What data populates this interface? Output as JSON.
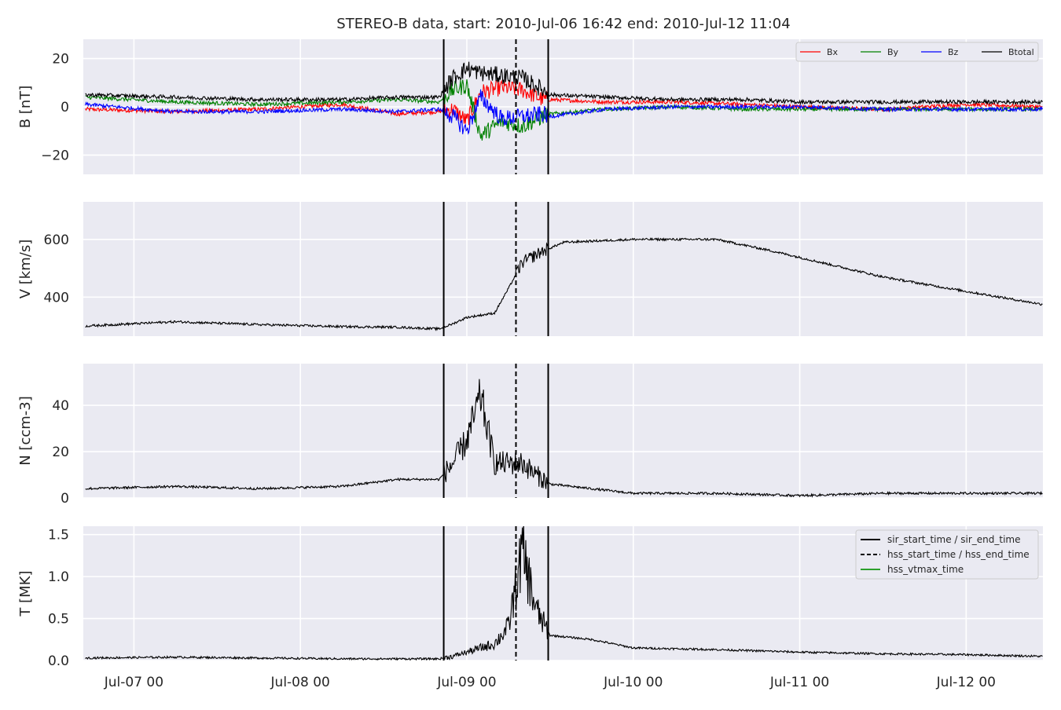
{
  "title": "STEREO-B data, start: 2010-Jul-06 16:42  end: 2010-Jul-12 11:04",
  "x_tick_labels": [
    "Jul-07 00",
    "Jul-08 00",
    "Jul-09 00",
    "Jul-10 00",
    "Jul-11 00",
    "Jul-12 00"
  ],
  "colors": {
    "plot_bg": "#eaeaf2",
    "grid": "#ffffff",
    "Bx": "#ff0000",
    "By": "#008000",
    "Bz": "#0000ff",
    "Btotal": "#000000",
    "line": "#000000",
    "hss_vtmax": "#2ca02c"
  },
  "chart_data": [
    {
      "type": "line",
      "id": "B",
      "ylabel": "B [nT]",
      "ylim": [
        -28,
        28
      ],
      "yticks": [
        -20,
        0,
        20
      ],
      "ytick_labels": [
        "−20",
        "0",
        "20"
      ],
      "x_range": [
        "2010-07-06 16:42",
        "2010-07-12 11:04"
      ],
      "legend": {
        "placement": "top-right",
        "entries": [
          "Bx",
          "By",
          "Bz",
          "Btotal"
        ]
      },
      "grid": true,
      "series": [
        {
          "name": "Bx",
          "points": [
            [
              "2010-07-06 17:00",
              -1
            ],
            [
              "2010-07-07 06:00",
              -2
            ],
            [
              "2010-07-07 18:00",
              -1
            ],
            [
              "2010-07-08 06:00",
              1
            ],
            [
              "2010-07-08 14:00",
              -3
            ],
            [
              "2010-07-08 20:00",
              -2
            ],
            [
              "2010-07-08 22:00",
              -1
            ],
            [
              "2010-07-09 00:00",
              -6
            ],
            [
              "2010-07-09 02:00",
              6
            ],
            [
              "2010-07-09 05:00",
              8
            ],
            [
              "2010-07-09 08:00",
              7
            ],
            [
              "2010-07-09 11:00",
              3
            ],
            [
              "2010-07-09 12:00",
              3
            ],
            [
              "2010-07-09 20:00",
              2
            ],
            [
              "2010-07-10 06:00",
              2
            ],
            [
              "2010-07-10 16:00",
              1
            ],
            [
              "2010-07-11 00:00",
              0
            ],
            [
              "2010-07-11 12:00",
              -1
            ],
            [
              "2010-07-12 00:00",
              1
            ],
            [
              "2010-07-12 11:00",
              0
            ]
          ]
        },
        {
          "name": "By",
          "points": [
            [
              "2010-07-06 17:00",
              4
            ],
            [
              "2010-07-07 06:00",
              2
            ],
            [
              "2010-07-07 18:00",
              1
            ],
            [
              "2010-07-08 06:00",
              2
            ],
            [
              "2010-07-08 14:00",
              3
            ],
            [
              "2010-07-08 20:00",
              2
            ],
            [
              "2010-07-08 22:00",
              7
            ],
            [
              "2010-07-09 00:00",
              9
            ],
            [
              "2010-07-09 02:00",
              -12
            ],
            [
              "2010-07-09 05:00",
              -6
            ],
            [
              "2010-07-09 08:00",
              -8
            ],
            [
              "2010-07-09 11:00",
              -4
            ],
            [
              "2010-07-09 12:00",
              -3
            ],
            [
              "2010-07-09 20:00",
              -1
            ],
            [
              "2010-07-10 06:00",
              0
            ],
            [
              "2010-07-10 16:00",
              -1
            ],
            [
              "2010-07-11 00:00",
              -1
            ],
            [
              "2010-07-11 12:00",
              -1
            ],
            [
              "2010-07-12 00:00",
              -1
            ],
            [
              "2010-07-12 11:00",
              -1
            ]
          ]
        },
        {
          "name": "Bz",
          "points": [
            [
              "2010-07-06 17:00",
              1
            ],
            [
              "2010-07-07 06:00",
              -2
            ],
            [
              "2010-07-07 18:00",
              -2
            ],
            [
              "2010-07-08 06:00",
              -1
            ],
            [
              "2010-07-08 14:00",
              -2
            ],
            [
              "2010-07-08 20:00",
              -1
            ],
            [
              "2010-07-08 22:00",
              -4
            ],
            [
              "2010-07-09 00:00",
              -10
            ],
            [
              "2010-07-09 02:00",
              4
            ],
            [
              "2010-07-09 05:00",
              -5
            ],
            [
              "2010-07-09 08:00",
              -4
            ],
            [
              "2010-07-09 11:00",
              -3
            ],
            [
              "2010-07-09 12:00",
              -4
            ],
            [
              "2010-07-09 20:00",
              -1
            ],
            [
              "2010-07-10 06:00",
              0
            ],
            [
              "2010-07-10 16:00",
              0
            ],
            [
              "2010-07-11 00:00",
              0
            ],
            [
              "2010-07-11 12:00",
              -1
            ],
            [
              "2010-07-12 00:00",
              -1
            ],
            [
              "2010-07-12 11:00",
              -1
            ]
          ]
        },
        {
          "name": "Btotal",
          "points": [
            [
              "2010-07-06 17:00",
              5
            ],
            [
              "2010-07-07 06:00",
              4
            ],
            [
              "2010-07-07 18:00",
              3
            ],
            [
              "2010-07-08 06:00",
              3
            ],
            [
              "2010-07-08 14:00",
              4
            ],
            [
              "2010-07-08 20:00",
              4
            ],
            [
              "2010-07-08 22:00",
              12
            ],
            [
              "2010-07-09 00:00",
              16
            ],
            [
              "2010-07-09 02:00",
              14
            ],
            [
              "2010-07-09 05:00",
              13
            ],
            [
              "2010-07-09 08:00",
              12
            ],
            [
              "2010-07-09 11:00",
              7
            ],
            [
              "2010-07-09 12:00",
              5
            ],
            [
              "2010-07-09 20:00",
              4
            ],
            [
              "2010-07-10 06:00",
              3
            ],
            [
              "2010-07-10 16:00",
              3
            ],
            [
              "2010-07-11 00:00",
              2
            ],
            [
              "2010-07-11 12:00",
              2
            ],
            [
              "2010-07-12 00:00",
              2
            ],
            [
              "2010-07-12 11:00",
              2
            ]
          ]
        }
      ]
    },
    {
      "type": "line",
      "id": "V",
      "ylabel": "V [km/s]",
      "ylim": [
        265,
        730
      ],
      "yticks": [
        400,
        600
      ],
      "ytick_labels": [
        "400",
        "600"
      ],
      "grid": true,
      "series": [
        {
          "points": [
            [
              "2010-07-06 17:00",
              300
            ],
            [
              "2010-07-07 06:00",
              315
            ],
            [
              "2010-07-07 18:00",
              305
            ],
            [
              "2010-07-08 06:00",
              298
            ],
            [
              "2010-07-08 14:00",
              296
            ],
            [
              "2010-07-08 20:00",
              290
            ],
            [
              "2010-07-08 22:00",
              308
            ],
            [
              "2010-07-09 00:00",
              330
            ],
            [
              "2010-07-09 04:00",
              345
            ],
            [
              "2010-07-09 06:00",
              430
            ],
            [
              "2010-07-09 08:00",
              520
            ],
            [
              "2010-07-09 11:00",
              560
            ],
            [
              "2010-07-09 14:00",
              590
            ],
            [
              "2010-07-10 00:00",
              600
            ],
            [
              "2010-07-10 12:00",
              600
            ],
            [
              "2010-07-10 20:00",
              560
            ],
            [
              "2010-07-11 04:00",
              515
            ],
            [
              "2010-07-11 12:00",
              470
            ],
            [
              "2010-07-12 00:00",
              420
            ],
            [
              "2010-07-12 11:00",
              375
            ]
          ]
        }
      ]
    },
    {
      "type": "line",
      "id": "N",
      "ylabel": "N [ccm-3]",
      "ylim": [
        0,
        58
      ],
      "yticks": [
        0,
        20,
        40
      ],
      "ytick_labels": [
        "0",
        "20",
        "40"
      ],
      "grid": true,
      "series": [
        {
          "points": [
            [
              "2010-07-06 17:00",
              4
            ],
            [
              "2010-07-07 06:00",
              5
            ],
            [
              "2010-07-07 18:00",
              4
            ],
            [
              "2010-07-08 06:00",
              5
            ],
            [
              "2010-07-08 14:00",
              8
            ],
            [
              "2010-07-08 20:00",
              8
            ],
            [
              "2010-07-08 22:00",
              15
            ],
            [
              "2010-07-09 00:00",
              25
            ],
            [
              "2010-07-09 02:00",
              44
            ],
            [
              "2010-07-09 04:00",
              15
            ],
            [
              "2010-07-09 08:00",
              15
            ],
            [
              "2010-07-09 10:00",
              10
            ],
            [
              "2010-07-09 12:00",
              6
            ],
            [
              "2010-07-10 00:00",
              2
            ],
            [
              "2010-07-10 12:00",
              2
            ],
            [
              "2010-07-11 00:00",
              1
            ],
            [
              "2010-07-11 12:00",
              2
            ],
            [
              "2010-07-12 00:00",
              2
            ],
            [
              "2010-07-12 11:00",
              2
            ]
          ]
        }
      ]
    },
    {
      "type": "line",
      "id": "T",
      "ylabel": "T [MK]",
      "ylim": [
        0,
        1.6
      ],
      "yticks": [
        0.0,
        0.5,
        1.0,
        1.5
      ],
      "ytick_labels": [
        "0.0",
        "0.5",
        "1.0",
        "1.5"
      ],
      "legend": {
        "placement": "top-right",
        "entries": [
          "sir_start_time / sir_end_time",
          "hss_start_time / hss_end_time",
          "hss_vtmax_time"
        ]
      },
      "grid": true,
      "series": [
        {
          "points": [
            [
              "2010-07-06 17:00",
              0.03
            ],
            [
              "2010-07-07 06:00",
              0.04
            ],
            [
              "2010-07-07 18:00",
              0.03
            ],
            [
              "2010-07-08 06:00",
              0.02
            ],
            [
              "2010-07-08 14:00",
              0.02
            ],
            [
              "2010-07-08 20:00",
              0.02
            ],
            [
              "2010-07-08 22:00",
              0.05
            ],
            [
              "2010-07-09 00:00",
              0.1
            ],
            [
              "2010-07-09 02:00",
              0.15
            ],
            [
              "2010-07-09 04:00",
              0.2
            ],
            [
              "2010-07-09 06:00",
              0.4
            ],
            [
              "2010-07-09 08:00",
              1.3
            ],
            [
              "2010-07-09 10:00",
              0.6
            ],
            [
              "2010-07-09 12:00",
              0.3
            ],
            [
              "2010-07-09 18:00",
              0.25
            ],
            [
              "2010-07-10 00:00",
              0.15
            ],
            [
              "2010-07-10 12:00",
              0.13
            ],
            [
              "2010-07-11 00:00",
              0.1
            ],
            [
              "2010-07-11 12:00",
              0.08
            ],
            [
              "2010-07-12 00:00",
              0.07
            ],
            [
              "2010-07-12 11:00",
              0.05
            ]
          ]
        }
      ]
    }
  ],
  "event_lines": [
    {
      "label": "sir_start_time / sir_end_time",
      "style": "solid",
      "times": [
        "2010-07-08 20:40",
        "2010-07-09 11:44"
      ]
    },
    {
      "label": "hss_start_time / hss_end_time",
      "style": "dashed",
      "times": [
        "2010-07-09 07:05"
      ]
    },
    {
      "label": "hss_vtmax_time",
      "style": "solid-green",
      "times": []
    }
  ]
}
